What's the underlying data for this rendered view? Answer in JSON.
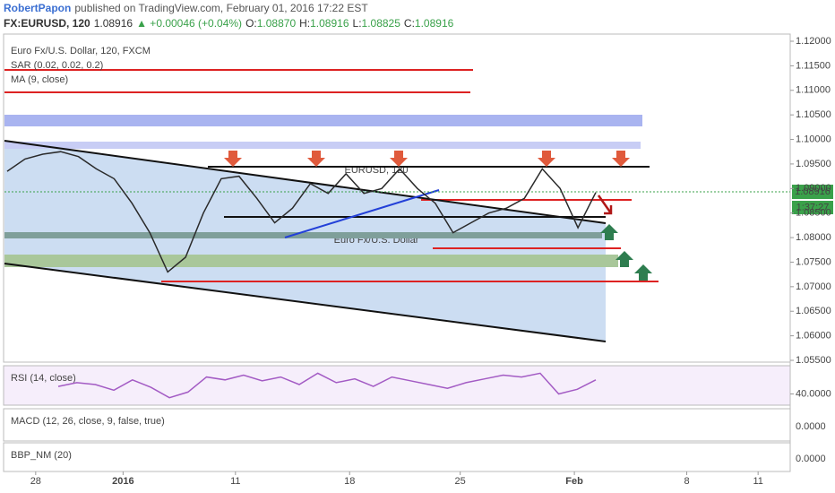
{
  "header": {
    "author": "RobertPapon",
    "published": "published on TradingView.com, February 01, 2016 17:22 EST",
    "ticker": "FX:EURUSD, 120",
    "last": "1.08916",
    "change": "▲ +0.00046 (+0.04%)",
    "open_label": "O:",
    "open": "1.08870",
    "high_label": "H:",
    "high": "1.08916",
    "low_label": "L:",
    "low": "1.08825",
    "close_label": "C:",
    "close": "1.08916"
  },
  "legend": [
    "Euro Fx/U.S. Dollar, 120, FXCM",
    "SAR (0.02, 0.02, 0.2)",
    "MA (9, close)"
  ],
  "watermark": {
    "symbol": "EURUSD, 120",
    "name": "Euro Fx/U.S. Dollar"
  },
  "price_tag": "1.08916",
  "countdown": "1:37:27",
  "panes": [
    {
      "title": "MACD (12, 26, close, 9, false, true)",
      "tick_label": "0.0000"
    },
    {
      "title": "BBP_NM (20)",
      "tick_label": "0.0000"
    }
  ],
  "chart_data": [
    {
      "type": "line",
      "color": "#2a2a2a",
      "values": [
        1.0935,
        1.096,
        1.097,
        1.0975,
        1.0965,
        1.094,
        1.092,
        1.087,
        1.081,
        1.073,
        1.076,
        1.085,
        1.092,
        1.0925,
        1.088,
        1.083,
        1.086,
        1.091,
        1.089,
        1.093,
        1.089,
        1.09,
        1.094,
        1.09,
        1.087,
        1.081,
        1.083,
        1.085,
        1.086,
        1.088,
        1.094,
        1.09,
        1.082,
        1.0892
      ],
      "xlim": [
        -0.4,
        43.9
      ],
      "xticks": [
        {
          "value": 1.6,
          "label": "28"
        },
        {
          "value": 6.5,
          "label": "2016"
        },
        {
          "value": 12.8,
          "label": "11"
        },
        {
          "value": 19.2,
          "label": "18"
        },
        {
          "value": 25.4,
          "label": "25"
        },
        {
          "value": 31.8,
          "label": "Feb"
        },
        {
          "value": 38.1,
          "label": "8"
        },
        {
          "value": 42.1,
          "label": "11"
        }
      ],
      "ylim": [
        1.055,
        1.12
      ],
      "yticks": [
        {
          "value": 1.12,
          "label": "1.12000"
        },
        {
          "value": 1.115,
          "label": "1.11500"
        },
        {
          "value": 1.11,
          "label": "1.11000"
        },
        {
          "value": 1.105,
          "label": "1.10500"
        },
        {
          "value": 1.1,
          "label": "1.10000"
        },
        {
          "value": 1.095,
          "label": "1.09500"
        },
        {
          "value": 1.09,
          "label": "1.09000"
        },
        {
          "value": 1.085,
          "label": "1.08500"
        },
        {
          "value": 1.08,
          "label": "1.08000"
        },
        {
          "value": 1.075,
          "label": "1.07500"
        },
        {
          "value": 1.07,
          "label": "1.07000"
        },
        {
          "value": 1.065,
          "label": "1.06500"
        },
        {
          "value": 1.06,
          "label": "1.06000"
        },
        {
          "value": 1.055,
          "label": "1.05500"
        }
      ]
    },
    {
      "type": "line",
      "title": "RSI (14, close)",
      "color": "#a35bc4",
      "values": [
        48,
        52,
        50,
        44,
        55,
        47,
        36,
        42,
        58,
        55,
        60,
        54,
        58,
        50,
        62,
        52,
        56,
        48,
        58,
        54,
        50,
        46,
        52,
        56,
        60,
        58,
        62,
        40,
        45,
        55
      ],
      "ylim": [
        30,
        70
      ],
      "yticks": [
        {
          "value": 40,
          "label": "40.0000"
        }
      ]
    }
  ]
}
